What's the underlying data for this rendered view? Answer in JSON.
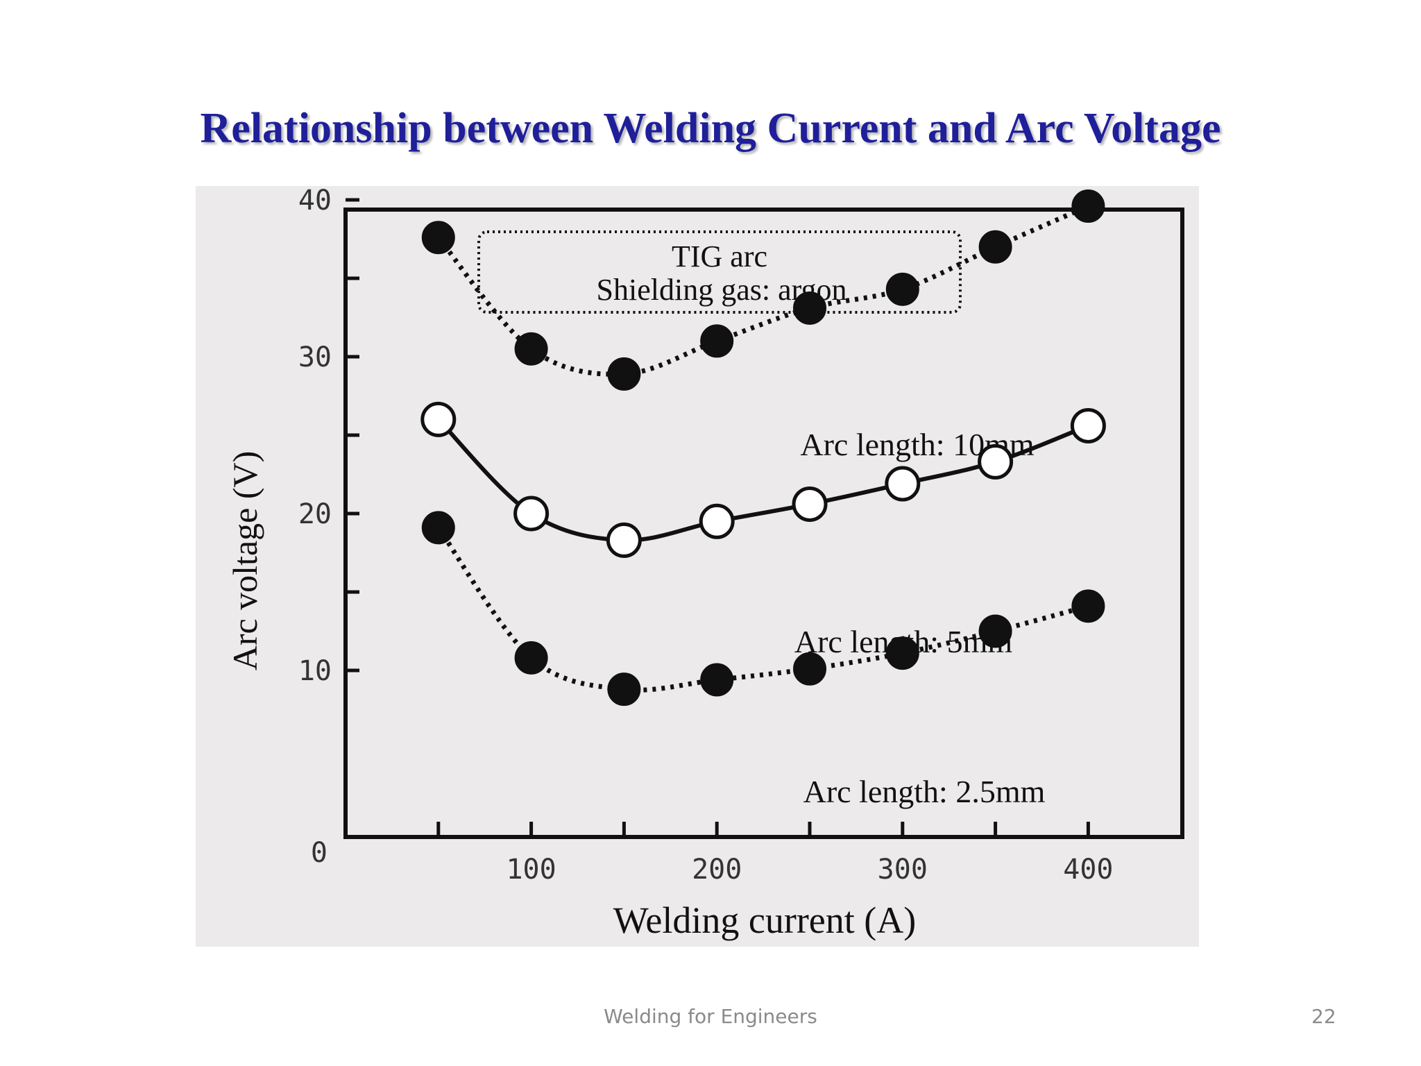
{
  "slide": {
    "title": "Relationship between Welding Current and Arc Voltage",
    "footer": "Welding for Engineers",
    "page_number": "22"
  },
  "chart_data": {
    "type": "line",
    "title": "",
    "box_label_line1": "TIG arc",
    "box_label_line2": "Shielding gas: argon",
    "xlabel": "Welding current (A)",
    "ylabel": "Arc voltage (V)",
    "xlim": [
      0,
      450
    ],
    "ylim": [
      0,
      45
    ],
    "x_ticks": [
      50,
      100,
      150,
      200,
      250,
      300,
      350,
      400
    ],
    "x_tick_labels": [
      {
        "value": 100,
        "label": "100"
      },
      {
        "value": 200,
        "label": "200"
      },
      {
        "value": 300,
        "label": "300"
      },
      {
        "value": 400,
        "label": "400"
      }
    ],
    "y_ticks": [
      10,
      15,
      20,
      25,
      30,
      35,
      40
    ],
    "y_tick_labels": [
      {
        "value": 0,
        "label": "0"
      },
      {
        "value": 10,
        "label": "10"
      },
      {
        "value": 20,
        "label": "20"
      },
      {
        "value": 30,
        "label": "30"
      },
      {
        "value": 40,
        "label": "40"
      }
    ],
    "grid": false,
    "x": [
      50,
      100,
      150,
      200,
      250,
      300,
      350,
      400
    ],
    "series": [
      {
        "name": "Arc length: 10mm",
        "marker": "filled",
        "line": "dotted",
        "values": [
          37.6,
          30.5,
          28.9,
          31.0,
          33.1,
          34.3,
          37.0,
          39.6
        ]
      },
      {
        "name": "Arc length: 5mm",
        "marker": "open",
        "line": "solid",
        "values": [
          26.0,
          20.0,
          18.3,
          19.5,
          20.6,
          21.9,
          23.3,
          25.6
        ]
      },
      {
        "name": "Arc length: 2.5mm",
        "marker": "filled",
        "line": "dotted",
        "values": [
          19.1,
          10.8,
          8.8,
          9.4,
          10.1,
          11.1,
          12.5,
          14.1
        ]
      }
    ]
  },
  "colors": {
    "title": "#1f1f9a",
    "panel_background": "#eceaea",
    "ink": "#111111",
    "open_marker_fill": "#ffffff"
  }
}
